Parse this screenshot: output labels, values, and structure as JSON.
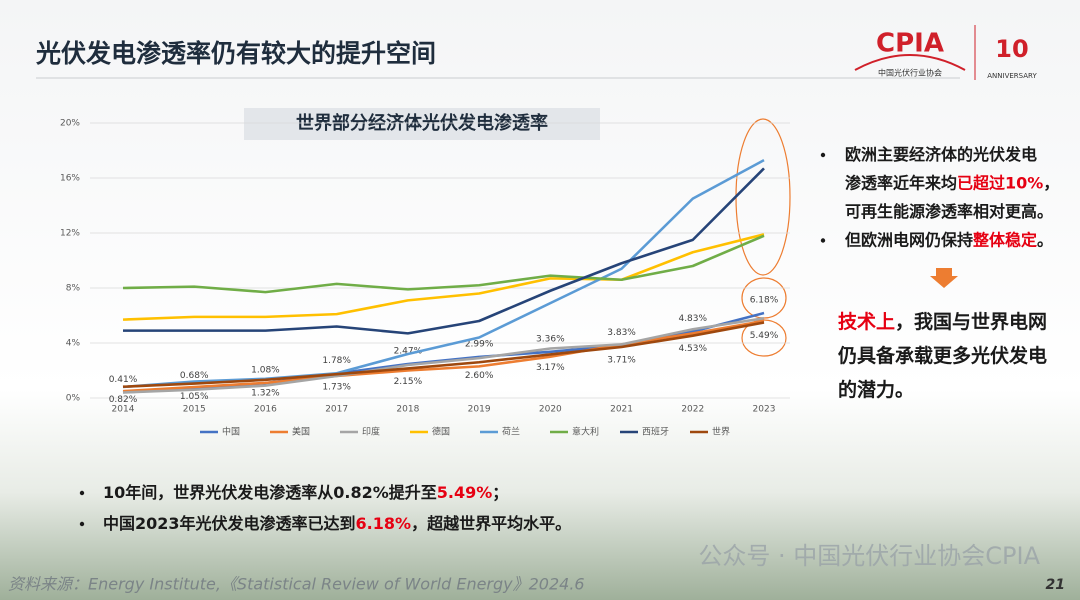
{
  "slide_title": "光伏发电渗透率仍有较大的提升空间",
  "logo": {
    "name": "CPIA",
    "subtitle": "中国光伏行业协会",
    "anniversary_mark": "10",
    "anniversary": "ANNIVERSARY"
  },
  "chart_data": {
    "type": "line",
    "title": "世界部分经济体光伏发电渗透率",
    "categories": [
      "2014",
      "2015",
      "2016",
      "2017",
      "2018",
      "2019",
      "2020",
      "2021",
      "2022",
      "2023"
    ],
    "ylim": [
      0,
      20
    ],
    "yticks": [
      {
        "value": 0,
        "label": "0%"
      },
      {
        "value": 4,
        "label": "4%"
      },
      {
        "value": 8,
        "label": "8%"
      },
      {
        "value": 12,
        "label": "12%"
      },
      {
        "value": 16,
        "label": "16%"
      },
      {
        "value": 20,
        "label": "20%"
      }
    ],
    "grid": true,
    "legend": "bottom",
    "series": [
      {
        "name": "中国",
        "color": "#4472c4",
        "values": [
          0.41,
          0.68,
          1.08,
          1.78,
          2.47,
          2.99,
          3.36,
          3.83,
          4.83,
          6.18
        ],
        "value_labels": [
          "0.41%",
          "0.68%",
          "1.08%",
          "1.78%",
          "2.47%",
          "2.99%",
          "3.36%",
          "3.83%",
          "4.83%",
          "6.18%"
        ],
        "label_side": "above"
      },
      {
        "name": "美国",
        "color": "#ed7d31",
        "values": [
          0.5,
          0.8,
          1.1,
          1.6,
          2.0,
          2.3,
          3.0,
          3.9,
          4.7,
          5.6
        ]
      },
      {
        "name": "印度",
        "color": "#a5a5a5",
        "values": [
          0.4,
          0.6,
          0.9,
          1.6,
          2.4,
          2.9,
          3.6,
          3.9,
          5.0,
          5.8
        ]
      },
      {
        "name": "德国",
        "color": "#ffc000",
        "values": [
          5.7,
          5.9,
          5.9,
          6.1,
          7.1,
          7.6,
          8.7,
          8.6,
          10.6,
          11.9
        ]
      },
      {
        "name": "荷兰",
        "color": "#5b9bd5",
        "values": [
          0.8,
          1.2,
          1.4,
          1.8,
          3.2,
          4.4,
          6.9,
          9.4,
          14.5,
          17.3
        ]
      },
      {
        "name": "意大利",
        "color": "#70ad47",
        "values": [
          8.0,
          8.1,
          7.7,
          8.3,
          7.9,
          8.2,
          8.9,
          8.6,
          9.6,
          11.8
        ]
      },
      {
        "name": "西班牙",
        "color": "#264478",
        "values": [
          4.9,
          4.9,
          4.9,
          5.2,
          4.7,
          5.6,
          7.8,
          9.8,
          11.5,
          16.7
        ]
      },
      {
        "name": "世界",
        "color": "#9e480e",
        "values": [
          0.82,
          1.05,
          1.32,
          1.73,
          2.15,
          2.6,
          3.17,
          3.71,
          4.53,
          5.49
        ],
        "value_labels": [
          "0.82%",
          "1.05%",
          "1.32%",
          "1.73%",
          "2.15%",
          "2.60%",
          "3.17%",
          "3.71%",
          "4.53%",
          "5.49%"
        ],
        "label_side": "below"
      }
    ]
  },
  "right_notes": [
    {
      "lines": [
        [
          {
            "text": "欧洲主要经济体的光伏发电",
            "red": false
          }
        ],
        [
          {
            "text": "渗透率近年来均",
            "red": false
          },
          {
            "text": "已超过10%",
            "red": true
          },
          {
            "text": "，",
            "red": false
          }
        ],
        [
          {
            "text": "可再生能源渗透率相对更高。",
            "red": false
          }
        ]
      ]
    },
    {
      "lines": [
        [
          {
            "text": "但欧洲电网仍保持",
            "red": false
          },
          {
            "text": "整体稳定",
            "red": true
          },
          {
            "text": "。",
            "red": false
          }
        ]
      ]
    }
  ],
  "conclusion": [
    [
      {
        "text": "技术上",
        "red": true
      },
      {
        "text": "，我国与世界电网",
        "red": false
      }
    ],
    [
      {
        "text": "仍具备承载更多光伏发电",
        "red": false
      }
    ],
    [
      {
        "text": "的潜力。",
        "red": false
      }
    ]
  ],
  "bottom_notes": [
    [
      {
        "text": "10年间，世界光伏发电渗透率从0.82%提升至",
        "red": false
      },
      {
        "text": "5.49%",
        "red": true
      },
      {
        "text": "；",
        "red": false
      }
    ],
    [
      {
        "text": "中国2023年光伏发电渗透率已达到",
        "red": false
      },
      {
        "text": "6.18%",
        "red": true
      },
      {
        "text": "，超越世界平均水平。",
        "red": false
      }
    ]
  ],
  "source": "资料来源：Energy Institute,《Statistical Review of World Energy》2024.6",
  "watermark": "公众号 · 中国光伏行业协会CPIA",
  "page_number": "21"
}
